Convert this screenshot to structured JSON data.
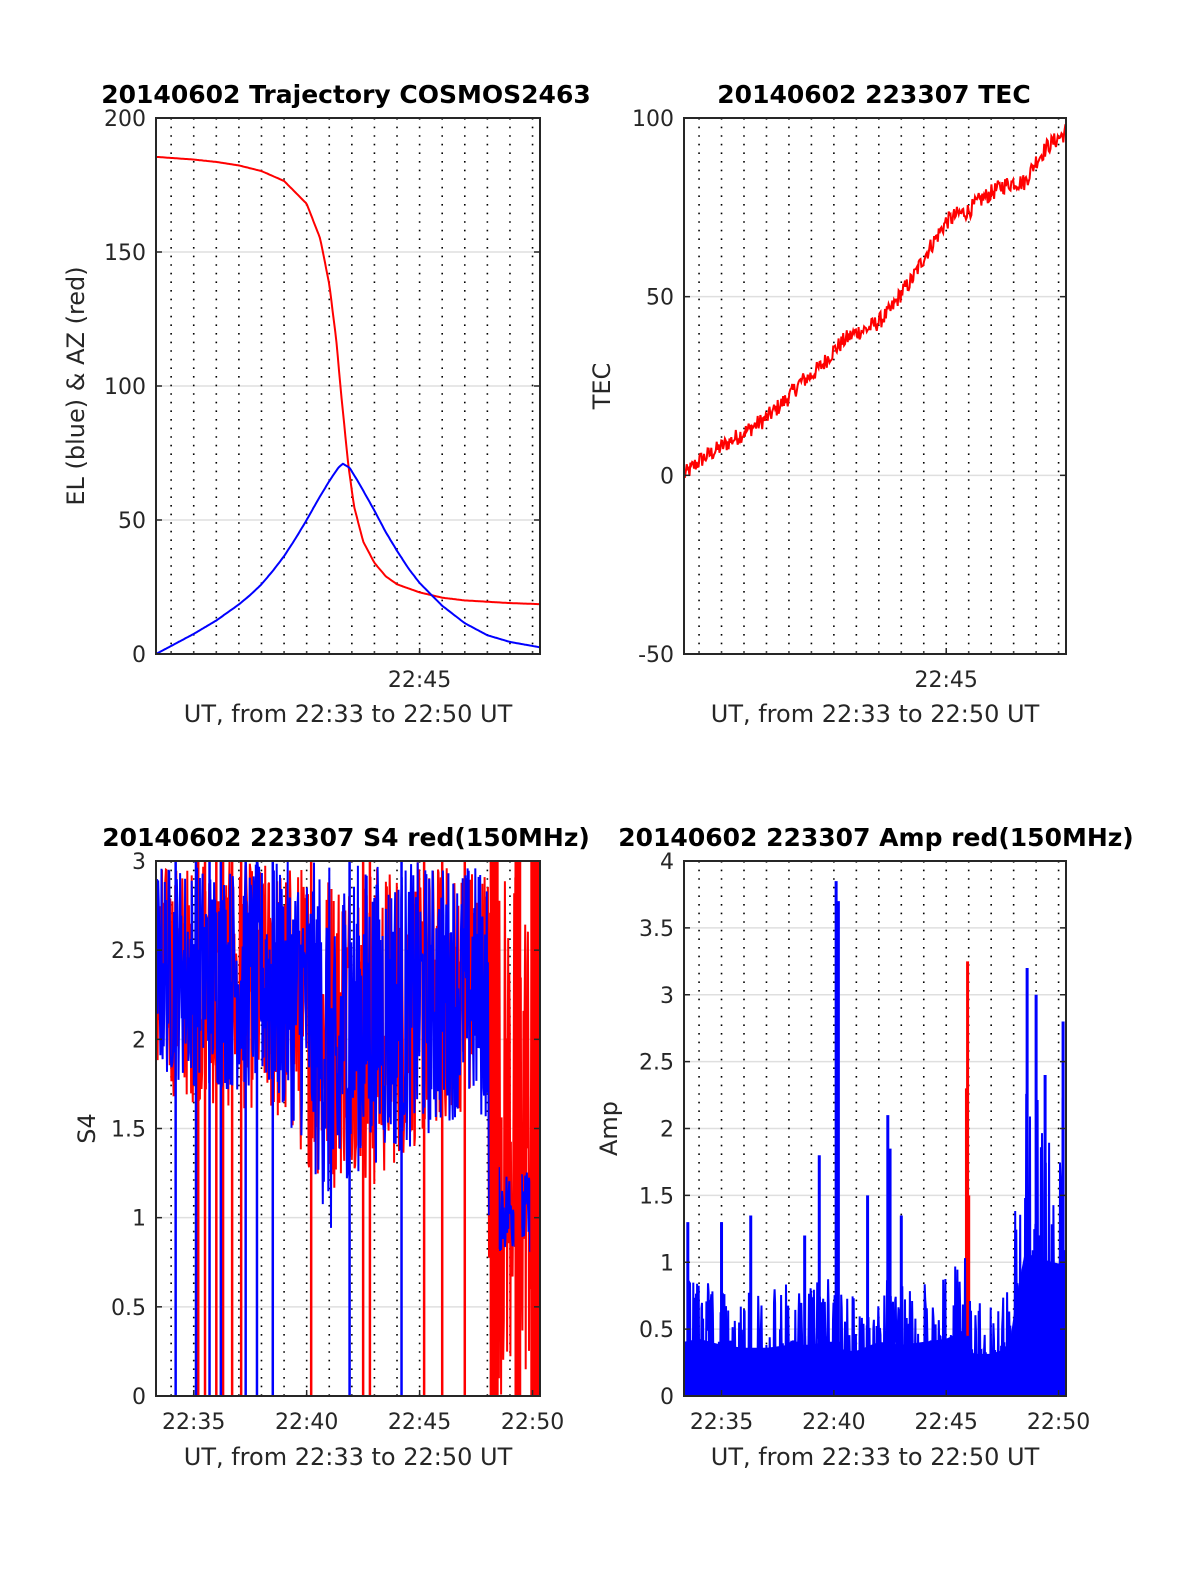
{
  "colors": {
    "red": "#ff0000",
    "blue": "#0000ff",
    "axis": "#262626",
    "hgrid": "#dfdfdf",
    "vgrid": "#000000"
  },
  "chart_data": [
    {
      "type": "line",
      "title": "20140602 Trajectory COSMOS2463",
      "xlabel": "UT, from 22:33 to 22:50 UT",
      "ylabel": "EL (blue) & AZ (red)",
      "xlim_min": [
        33.33,
        50.33
      ],
      "ylim": [
        0,
        200
      ],
      "yticks": [
        0,
        50,
        100,
        150,
        200
      ],
      "ytick_labels": [
        "0",
        "50",
        "100",
        "150",
        "200"
      ],
      "xticks": [
        45
      ],
      "xtick_labels": [
        "22:45"
      ],
      "vgrid_minutes": [
        34,
        35,
        36,
        37,
        38,
        39,
        40,
        41,
        42,
        43,
        44,
        45,
        46,
        47,
        48,
        49,
        50
      ],
      "series": [
        {
          "color": "red",
          "points": [
            [
              33.33,
              185.5
            ],
            [
              35,
              184.5
            ],
            [
              36,
              183.6
            ],
            [
              37,
              182.3
            ],
            [
              38,
              180.2
            ],
            [
              39,
              176.5
            ],
            [
              40,
              168
            ],
            [
              40.6,
              155
            ],
            [
              41,
              138
            ],
            [
              41.3,
              118
            ],
            [
              41.55,
              95
            ],
            [
              41.85,
              70
            ],
            [
              42.1,
              55
            ],
            [
              42.5,
              42
            ],
            [
              43,
              34
            ],
            [
              43.5,
              29
            ],
            [
              44,
              26
            ],
            [
              45,
              23
            ],
            [
              46,
              21
            ],
            [
              47,
              20
            ],
            [
              48,
              19.5
            ],
            [
              49,
              19
            ],
            [
              50.33,
              18.6
            ]
          ]
        },
        {
          "color": "blue",
          "points": [
            [
              33.33,
              0
            ],
            [
              34,
              3
            ],
            [
              35,
              7.5
            ],
            [
              36,
              12.5
            ],
            [
              37,
              18.5
            ],
            [
              37.5,
              22
            ],
            [
              38,
              26
            ],
            [
              38.5,
              31
            ],
            [
              39,
              36.5
            ],
            [
              39.5,
              43
            ],
            [
              40,
              50
            ],
            [
              40.5,
              57.5
            ],
            [
              41,
              64.5
            ],
            [
              41.4,
              69.5
            ],
            [
              41.6,
              71
            ],
            [
              41.9,
              69.5
            ],
            [
              42.3,
              64
            ],
            [
              43,
              53.5
            ],
            [
              43.5,
              45.5
            ],
            [
              44,
              38.5
            ],
            [
              44.5,
              32
            ],
            [
              45,
              26.5
            ],
            [
              46,
              18
            ],
            [
              47,
              11.5
            ],
            [
              48,
              7
            ],
            [
              49,
              4.5
            ],
            [
              50.33,
              2.5
            ]
          ]
        }
      ]
    },
    {
      "type": "line",
      "title": "20140602 223307 TEC",
      "xlabel": "UT, from 22:33 to 22:50 UT",
      "ylabel": "TEC",
      "xlim_min": [
        33.33,
        50.33
      ],
      "ylim": [
        -50,
        100
      ],
      "yticks": [
        -50,
        0,
        50,
        100
      ],
      "ytick_labels": [
        "-50",
        "0",
        "50",
        "100"
      ],
      "xticks": [
        45
      ],
      "xtick_labels": [
        "22:45"
      ],
      "vgrid_minutes": [
        34,
        35,
        36,
        37,
        38,
        39,
        40,
        41,
        42,
        43,
        44,
        45,
        46,
        47,
        48,
        49,
        50
      ],
      "series": [
        {
          "color": "red",
          "noise": 0.8,
          "points": [
            [
              33.33,
              0
            ],
            [
              34,
              4
            ],
            [
              35,
              8
            ],
            [
              36,
              12
            ],
            [
              37,
              16
            ],
            [
              38,
              22
            ],
            [
              38.5,
              26
            ],
            [
              39,
              28
            ],
            [
              39.5,
              31
            ],
            [
              40,
              35
            ],
            [
              40.5,
              38
            ],
            [
              41,
              40
            ],
            [
              41.5,
              41
            ],
            [
              42,
              43
            ],
            [
              42.5,
              46
            ],
            [
              43,
              51
            ],
            [
              43.5,
              55
            ],
            [
              44,
              61
            ],
            [
              44.5,
              66
            ],
            [
              45,
              71
            ],
            [
              45.5,
              73
            ],
            [
              46,
              74
            ],
            [
              46.5,
              77
            ],
            [
              47,
              79
            ],
            [
              47.5,
              81
            ],
            [
              48,
              82
            ],
            [
              48.5,
              82
            ],
            [
              49,
              88
            ],
            [
              49.5,
              92
            ],
            [
              50.33,
              96
            ]
          ]
        }
      ]
    },
    {
      "type": "line",
      "title": "20140602 223307 S4 red(150MHz)",
      "xlabel": "UT, from 22:33 to 22:50 UT",
      "ylabel": "S4",
      "xlim_min": [
        33.33,
        50.33
      ],
      "ylim": [
        0,
        3
      ],
      "yticks": [
        0,
        0.5,
        1,
        1.5,
        2,
        2.5,
        3
      ],
      "ytick_labels": [
        "0",
        "0.5",
        "1",
        "1.5",
        "2",
        "2.5",
        "3"
      ],
      "xticks": [
        35,
        40,
        45,
        50
      ],
      "xtick_labels": [
        "22:35",
        "22:40",
        "22:45",
        "22:50"
      ],
      "vgrid_minutes": [
        34,
        35,
        36,
        37,
        38,
        39,
        40,
        41,
        42,
        43,
        44,
        45,
        46,
        47,
        48,
        49,
        50
      ],
      "series": [
        {
          "color": "red",
          "envelope": [
            [
              33.33,
              1.7,
              3
            ],
            [
              36,
              1.6,
              3
            ],
            [
              38,
              1.6,
              3
            ],
            [
              40,
              1.3,
              3
            ],
            [
              41,
              1.1,
              3
            ],
            [
              42,
              1.3,
              3
            ],
            [
              43,
              1.1,
              3
            ],
            [
              44,
              1.3,
              3
            ],
            [
              46,
              1.5,
              3
            ],
            [
              48,
              1.7,
              3
            ],
            [
              48.1,
              0,
              3
            ],
            [
              50.33,
              0,
              3
            ]
          ],
          "drops": [
            35.2,
            35.5,
            36,
            36.3,
            36.7,
            37.1,
            40.2,
            42.5,
            42.8,
            45.2,
            46,
            47
          ]
        },
        {
          "color": "blue",
          "envelope": [
            [
              33.33,
              1.8,
              3
            ],
            [
              36,
              1.7,
              3
            ],
            [
              38,
              1.7,
              3
            ],
            [
              40,
              1.4,
              3
            ],
            [
              41,
              0.9,
              3
            ],
            [
              41.3,
              0.5,
              2.5
            ],
            [
              41.6,
              1.2,
              3
            ],
            [
              43,
              1.3,
              3
            ],
            [
              45,
              1.4,
              3
            ],
            [
              47,
              1.6,
              3
            ],
            [
              48,
              1.5,
              3
            ],
            [
              48.1,
              0.8,
              1.3
            ],
            [
              50.33,
              0.8,
              1.25
            ]
          ],
          "drops": [
            34.2,
            35.1,
            35.7,
            36.2,
            37.3,
            37.8,
            38.5,
            41.9,
            44.2
          ]
        }
      ]
    },
    {
      "type": "line",
      "title": "20140602 223307 Amp red(150MHz)",
      "xlabel": "UT, from 22:33 to 22:50 UT",
      "ylabel": "Amp",
      "xlim_min": [
        33.33,
        50.33
      ],
      "ylim": [
        0,
        4
      ],
      "yticks": [
        0,
        0.5,
        1,
        1.5,
        2,
        2.5,
        3,
        3.5,
        4
      ],
      "ytick_labels": [
        "0",
        "0.5",
        "1",
        "1.5",
        "2",
        "2.5",
        "3",
        "3.5",
        "4"
      ],
      "xticks": [
        35,
        40,
        45,
        50
      ],
      "xtick_labels": [
        "22:35",
        "22:40",
        "22:45",
        "22:50"
      ],
      "vgrid_minutes": [
        34,
        35,
        36,
        37,
        38,
        39,
        40,
        41,
        42,
        43,
        44,
        45,
        46,
        47,
        48,
        49,
        50
      ],
      "series": [
        {
          "color": "red",
          "spikes": [
            [
              45.95,
              3.25
            ],
            [
              45.9,
              2.3
            ],
            [
              46,
              1.5
            ]
          ]
        },
        {
          "color": "blue",
          "envelope": [
            [
              33.33,
              0.9
            ],
            [
              34,
              0.95
            ],
            [
              35,
              0.85
            ],
            [
              36,
              0.8
            ],
            [
              37,
              0.8
            ],
            [
              38,
              0.85
            ],
            [
              39,
              0.85
            ],
            [
              39.6,
              0.9
            ],
            [
              40,
              0.9
            ],
            [
              40.5,
              0.75
            ],
            [
              41,
              0.75
            ],
            [
              42,
              0.9
            ],
            [
              43,
              0.85
            ],
            [
              44,
              0.9
            ],
            [
              45,
              0.95
            ],
            [
              45.8,
              1.1
            ],
            [
              46.2,
              0.7
            ],
            [
              47,
              0.7
            ],
            [
              47.8,
              0.8
            ],
            [
              48.1,
              1.6
            ],
            [
              48.5,
              2.4
            ],
            [
              49,
              2.3
            ],
            [
              50,
              2.2
            ],
            [
              50.33,
              2.3
            ]
          ],
          "spikes": [
            [
              39.35,
              1.8
            ],
            [
              40.1,
              3.85
            ],
            [
              40.2,
              3.7
            ],
            [
              41.5,
              1.5
            ],
            [
              42.4,
              2.1
            ],
            [
              42.5,
              1.85
            ],
            [
              43,
              1.35
            ],
            [
              48.6,
              3.2
            ],
            [
              49,
              3.0
            ],
            [
              49.4,
              2.4
            ],
            [
              50.2,
              2.8
            ],
            [
              33.5,
              1.3
            ],
            [
              35,
              1.3
            ],
            [
              36.3,
              1.35
            ],
            [
              38.7,
              1.2
            ]
          ]
        }
      ]
    }
  ]
}
